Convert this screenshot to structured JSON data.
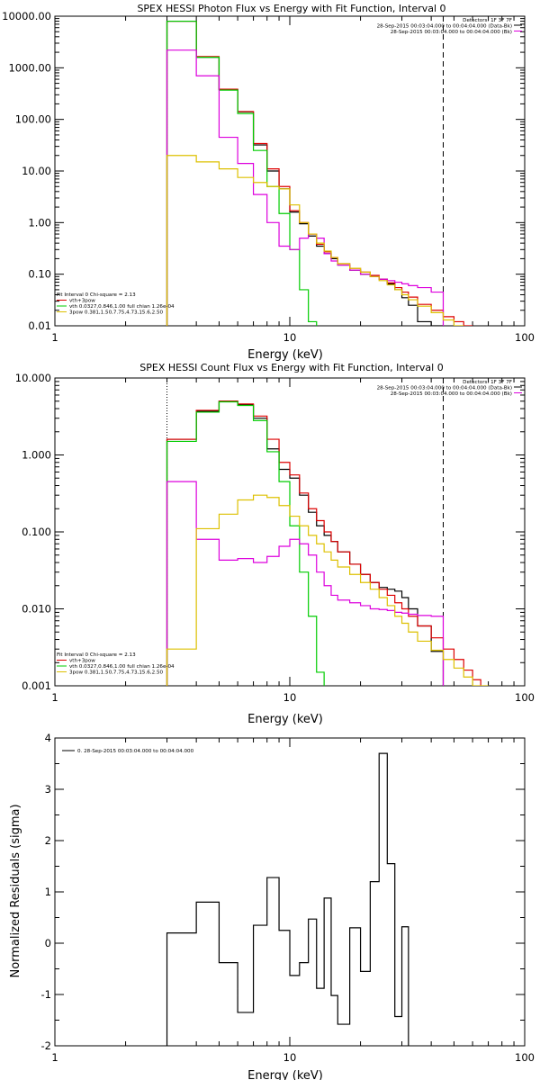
{
  "chart_data": [
    {
      "type": "line",
      "title": "SPEX HESSI Photon Flux vs Energy with Fit Function, Interval 0",
      "xlabel": "Energy (keV)",
      "ylabel": "",
      "xscale": "log",
      "yscale": "log",
      "xlim": [
        1,
        100
      ],
      "ylim": [
        0.01,
        10000
      ],
      "xticks": [
        "1",
        "10",
        "100"
      ],
      "yticks": [
        "0.01",
        "0.10",
        "1.00",
        "10.00",
        "100.00",
        "1000.00",
        "10000.00"
      ],
      "header_lines": [
        "Detectors: 1F 3F 7F",
        "28-Sep-2015 00:03:04.000 to 00:04:04.000 (Data-Bk)",
        "28-Sep-2015 00:03:04.000 to 00:04:04.000 (Bk)"
      ],
      "fit_note": "Fit Interval 0   Chi-square = 2.13",
      "legend": [
        {
          "label": "vth+3pow",
          "color": "#dd0000"
        },
        {
          "label": "vth 0.0327,0.846,1.00  full chian 1.26e-04",
          "color": "#00cc00"
        },
        {
          "label": "3pow 0.381,1.50,7.75,4.73,15.6,2.50",
          "color": "#ddc000"
        }
      ],
      "vlines": [
        3,
        45
      ],
      "edges": [
        3,
        4,
        5,
        6,
        7,
        8,
        9,
        10,
        11,
        12,
        13,
        14,
        15,
        16,
        18,
        20,
        22,
        24,
        26,
        28,
        30,
        32,
        35,
        40,
        45,
        50,
        55,
        60
      ],
      "series": [
        {
          "color": "#000000",
          "values": [
            8000,
            1600,
            380,
            140,
            32,
            10,
            4.5,
            1.6,
            0.95,
            0.55,
            0.35,
            0.25,
            0.2,
            0.15,
            0.12,
            0.1,
            0.09,
            0.08,
            0.065,
            0.05,
            0.035,
            0.025,
            0.012,
            0.01,
            null,
            null,
            null
          ]
        },
        {
          "color": "#dd0000",
          "values": [
            8000,
            1650,
            385,
            142,
            34,
            11,
            5.0,
            1.7,
            1.0,
            0.6,
            0.38,
            0.27,
            0.21,
            0.16,
            0.13,
            0.11,
            0.095,
            0.08,
            0.068,
            0.055,
            0.045,
            0.036,
            0.026,
            0.02,
            0.015,
            0.012,
            0.01
          ]
        },
        {
          "color": "#00cc00",
          "values": [
            8000,
            1600,
            370,
            130,
            25,
            5.0,
            1.5,
            0.3,
            0.05,
            0.012,
            null,
            null,
            null,
            null,
            null,
            null,
            null,
            null,
            null,
            null,
            null,
            null,
            null,
            null,
            null,
            null,
            null
          ]
        },
        {
          "color": "#dd00dd",
          "values": [
            2200,
            700,
            45,
            14,
            3.5,
            1.0,
            0.35,
            0.3,
            0.5,
            0.6,
            0.5,
            0.25,
            0.18,
            0.15,
            0.12,
            0.1,
            0.09,
            0.08,
            0.075,
            0.07,
            0.065,
            0.06,
            0.055,
            0.045,
            null,
            null,
            null
          ]
        },
        {
          "color": "#ddc000",
          "values": [
            20,
            15,
            11,
            7.5,
            6,
            5,
            4.5,
            2.2,
            1.0,
            0.6,
            0.4,
            0.28,
            0.21,
            0.16,
            0.13,
            0.11,
            0.09,
            0.075,
            0.062,
            0.05,
            0.04,
            0.032,
            0.024,
            0.018,
            0.013,
            0.01,
            null
          ]
        }
      ]
    },
    {
      "type": "line",
      "title": "SPEX HESSI Count Flux vs Energy with Fit Function, Interval 0",
      "xlabel": "Energy (keV)",
      "ylabel": "",
      "xscale": "log",
      "yscale": "log",
      "xlim": [
        1,
        100
      ],
      "ylim": [
        0.001,
        10
      ],
      "xticks": [
        "1",
        "10",
        "100"
      ],
      "yticks": [
        "0.001",
        "0.010",
        "0.100",
        "1.000",
        "10.000"
      ],
      "header_lines": [
        "Detectors: 1F 3F 7F",
        "28-Sep-2015 00:03:04.000 to 00:04:04.000 (Data-Bk)",
        "28-Sep-2015 00:03:04.000 to 00:04:04.000 (Bk)"
      ],
      "fit_note": "Fit Interval 0   Chi-square = 2.13",
      "legend": [
        {
          "label": "vth+3pow",
          "color": "#dd0000"
        },
        {
          "label": "vth 0.0327,0.846,1.00  full chian 1.26e-04",
          "color": "#00cc00"
        },
        {
          "label": "3pow 0.381,1.50,7.75,4.73,15.6,2.50",
          "color": "#ddc000"
        }
      ],
      "vlines": [
        3,
        45
      ],
      "edges": [
        3,
        4,
        5,
        6,
        7,
        8,
        9,
        10,
        11,
        12,
        13,
        14,
        15,
        16,
        18,
        20,
        22,
        24,
        26,
        28,
        30,
        32,
        35,
        40,
        45,
        50,
        55,
        60,
        65,
        70
      ],
      "series": [
        {
          "color": "#000000",
          "values": [
            1.6,
            3.7,
            5.0,
            4.5,
            3.0,
            1.2,
            0.65,
            0.5,
            0.3,
            0.18,
            0.12,
            0.09,
            0.075,
            0.055,
            0.038,
            0.028,
            0.022,
            0.019,
            0.018,
            0.017,
            0.014,
            0.01,
            0.006,
            0.0028,
            null,
            null,
            null,
            null,
            null
          ]
        },
        {
          "color": "#dd0000",
          "values": [
            1.6,
            3.8,
            5.0,
            4.6,
            3.2,
            1.6,
            0.8,
            0.55,
            0.32,
            0.2,
            0.14,
            0.1,
            0.075,
            0.055,
            0.038,
            0.028,
            0.022,
            0.018,
            0.015,
            0.012,
            0.01,
            0.008,
            0.006,
            0.0042,
            0.003,
            0.0022,
            0.0016,
            0.0012,
            null
          ]
        },
        {
          "color": "#00cc00",
          "values": [
            1.5,
            3.6,
            4.9,
            4.4,
            2.8,
            1.1,
            0.45,
            0.12,
            0.03,
            0.008,
            0.0015,
            null,
            null,
            null,
            null,
            null,
            null,
            null,
            null,
            null,
            null,
            null,
            null,
            null,
            null,
            null,
            null,
            null,
            null
          ]
        },
        {
          "color": "#dd00dd",
          "values": [
            0.45,
            0.08,
            0.043,
            0.045,
            0.04,
            0.048,
            0.065,
            0.08,
            0.07,
            0.05,
            0.03,
            0.02,
            0.015,
            0.013,
            0.012,
            0.011,
            0.01,
            0.0098,
            0.0095,
            0.009,
            0.0088,
            0.0085,
            0.0082,
            0.008,
            null,
            null,
            null,
            null,
            null
          ]
        },
        {
          "color": "#ddc000",
          "values": [
            0.003,
            0.11,
            0.17,
            0.26,
            0.3,
            0.28,
            0.22,
            0.16,
            0.12,
            0.09,
            0.07,
            0.055,
            0.043,
            0.035,
            0.028,
            0.022,
            0.018,
            0.014,
            0.011,
            0.008,
            0.0065,
            0.005,
            0.0038,
            0.0029,
            0.0022,
            0.0017,
            0.0013,
            0.001,
            0.0008
          ]
        }
      ]
    },
    {
      "type": "line",
      "title": "",
      "xlabel": "Energy (keV)",
      "ylabel": "Normalized Residuals (sigma)",
      "xscale": "log",
      "yscale": "linear",
      "xlim": [
        1,
        100
      ],
      "ylim": [
        -2,
        4
      ],
      "xticks": [
        "1",
        "10",
        "100"
      ],
      "yticks": [
        "-2",
        "-1",
        "0",
        "1",
        "2",
        "3",
        "4"
      ],
      "legend": [
        {
          "label": "0. 28-Sep-2015 00:03:04.000 to 00:04:04.000",
          "color": "#000000"
        }
      ],
      "edges": [
        3,
        4,
        5,
        6,
        7,
        8,
        9,
        10,
        11,
        12,
        13,
        14,
        15,
        16,
        18,
        20,
        22,
        24,
        26,
        28,
        30,
        32,
        35,
        40,
        45
      ],
      "series": [
        {
          "color": "#000000",
          "values": [
            0.2,
            0.8,
            -0.38,
            -1.35,
            0.35,
            1.28,
            0.25,
            -0.63,
            -0.38,
            0.47,
            -0.88,
            0.88,
            -1.02,
            -1.58,
            0.3,
            -0.55,
            1.2,
            3.7,
            1.55,
            -1.43,
            0.32
          ]
        }
      ]
    }
  ]
}
